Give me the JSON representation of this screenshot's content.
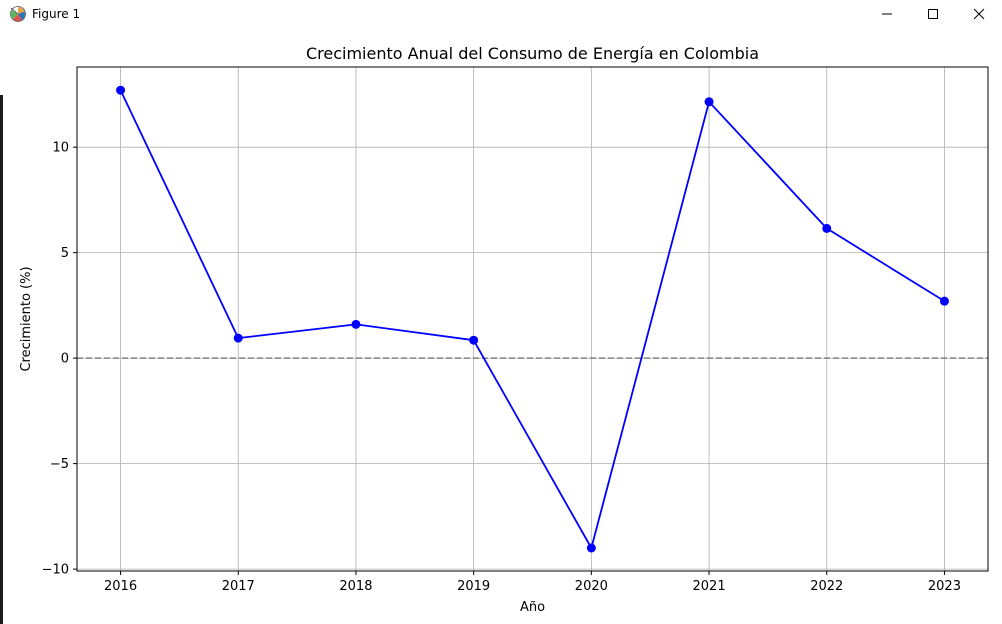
{
  "window": {
    "title": "Figure 1",
    "icons": {
      "app": "matplotlib-icon",
      "minimize": "minimize-icon",
      "maximize": "maximize-icon",
      "close": "close-icon"
    }
  },
  "chart_data": {
    "type": "line",
    "title": "Crecimiento Anual del Consumo de Energía en Colombia",
    "xlabel": "Año",
    "ylabel": "Crecimiento (%)",
    "x": [
      2016,
      2017,
      2018,
      2019,
      2020,
      2021,
      2022,
      2023
    ],
    "series": [
      {
        "values": [
          12.7,
          0.95,
          1.6,
          0.85,
          -9.0,
          12.15,
          6.15,
          2.7
        ],
        "color": "#0000ff",
        "marker": "circle"
      }
    ],
    "xticks": [
      "2016",
      "2017",
      "2018",
      "2019",
      "2020",
      "2021",
      "2022",
      "2023"
    ],
    "yticks": [
      -10,
      -5,
      0,
      5,
      10
    ],
    "ytick_labels": [
      "−10",
      "−5",
      "0",
      "5",
      "10"
    ],
    "xlim": [
      2015.63,
      2023.37
    ],
    "ylim": [
      -10.09,
      13.8
    ],
    "grid": true,
    "reference_line": {
      "y": 0,
      "style": "dashed",
      "color": "#808080"
    }
  }
}
